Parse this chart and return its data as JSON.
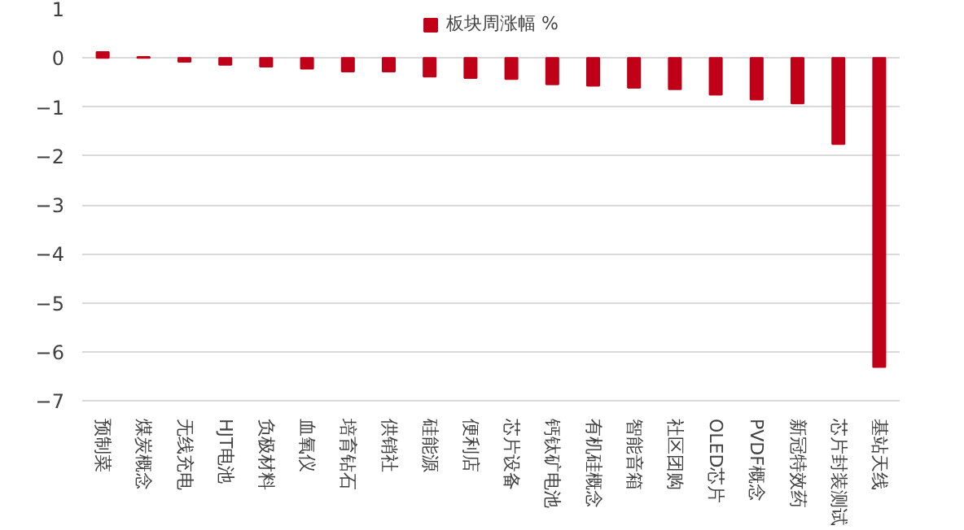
{
  "chart_data": {
    "type": "bar",
    "categories": [
      "预制菜",
      "煤炭概念",
      "无线充电",
      "HJT电池",
      "负极材料",
      "血氧仪",
      "培育钻石",
      "供销社",
      "硅能源",
      "便利店",
      "芯片设备",
      "钙钛矿电池",
      "有机硅概念",
      "智能音箱",
      "社区团购",
      "OLED芯片",
      "PVDF概念",
      "新冠特效药",
      "芯片封装测试",
      "基站天线"
    ],
    "series": [
      {
        "name": "板块周涨幅 %",
        "color": "#c00018",
        "values": [
          0.12,
          0.02,
          -0.08,
          -0.14,
          -0.18,
          -0.22,
          -0.28,
          -0.28,
          -0.38,
          -0.41,
          -0.43,
          -0.54,
          -0.57,
          -0.61,
          -0.64,
          -0.75,
          -0.85,
          -0.93,
          -1.76,
          -6.31
        ]
      }
    ],
    "ylim": [
      -7,
      1
    ],
    "yticks": [
      -7,
      -6,
      -5,
      -4,
      -3,
      -2,
      -1,
      0,
      1
    ],
    "grid": "y",
    "legend": "top"
  }
}
